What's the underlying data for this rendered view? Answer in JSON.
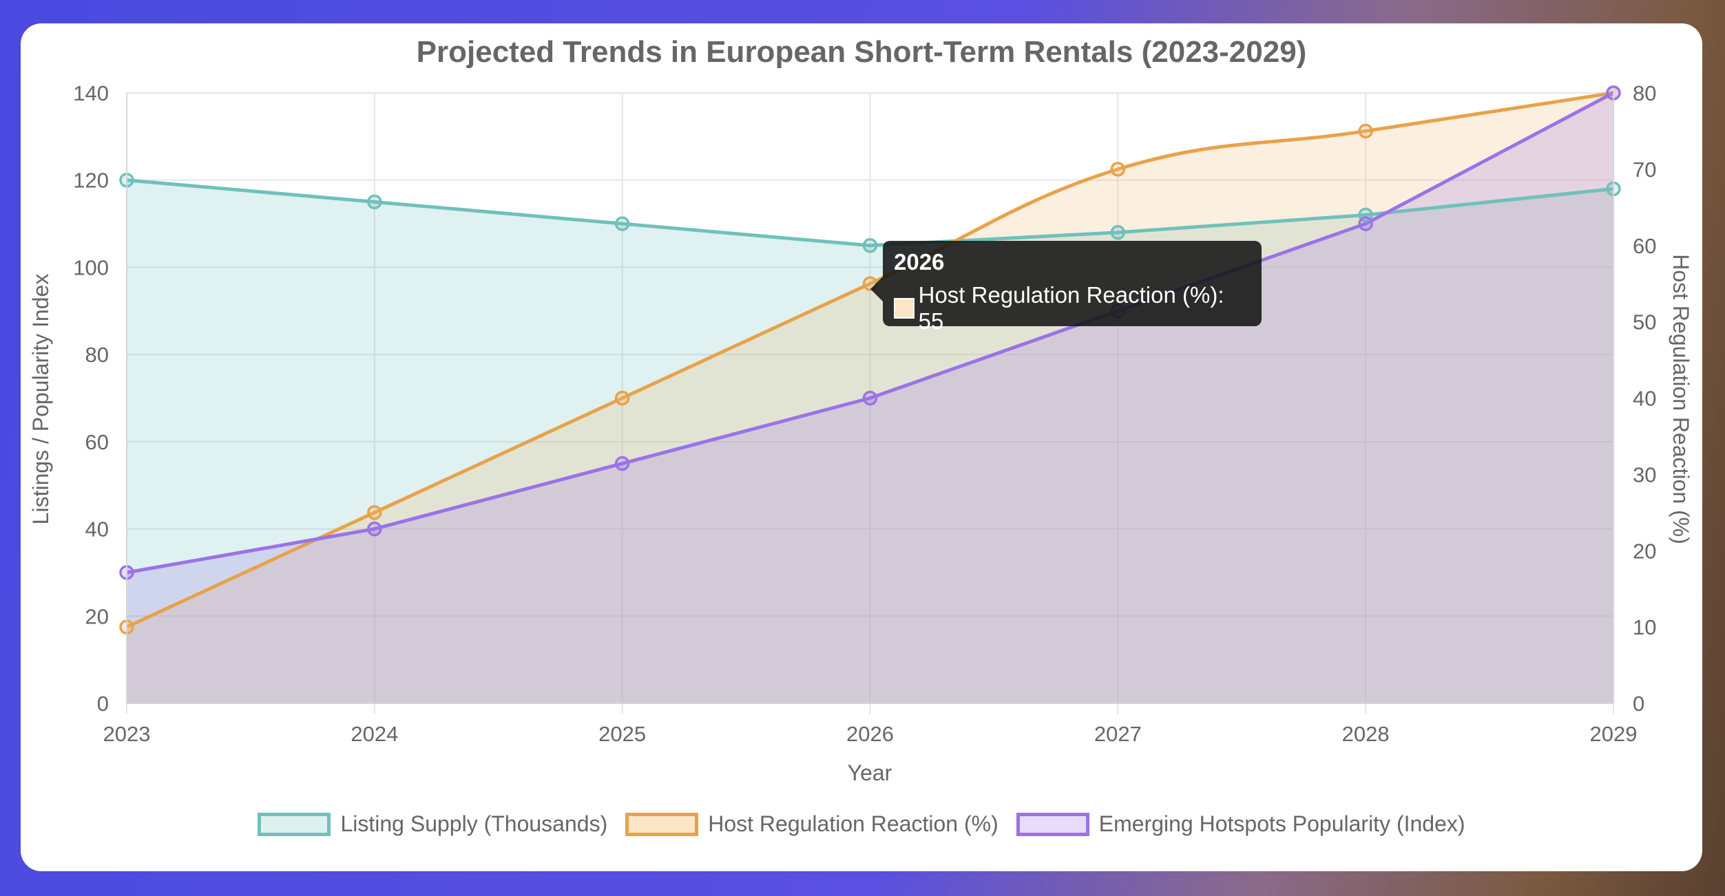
{
  "chart_data": {
    "type": "line",
    "title": "Projected Trends in European Short-Term Rentals (2023-2029)",
    "xlabel": "Year",
    "ylabel_left": "Listings / Popularity Index",
    "ylabel_right": "Host Regulation Reaction (%)",
    "categories": [
      "2023",
      "2024",
      "2025",
      "2026",
      "2027",
      "2028",
      "2029"
    ],
    "y_left": {
      "min": 0,
      "max": 140,
      "ticks": [
        0,
        20,
        40,
        60,
        80,
        100,
        120,
        140
      ]
    },
    "y_right": {
      "min": 0,
      "max": 80,
      "ticks": [
        0,
        10,
        20,
        30,
        40,
        50,
        60,
        70,
        80
      ]
    },
    "grid": true,
    "legend_position": "bottom",
    "series": [
      {
        "name": "Listing Supply (Thousands)",
        "axis": "left",
        "values": [
          120,
          115,
          110,
          105,
          108,
          112,
          118
        ],
        "color": "#6fc1bb",
        "fill": "rgba(111,193,187,0.22)",
        "smooth": false
      },
      {
        "name": "Host Regulation Reaction (%)",
        "axis": "right",
        "values": [
          10,
          25,
          40,
          55,
          70,
          75,
          80
        ],
        "color": "#e8a24a",
        "fill": "rgba(240,190,120,0.24)",
        "smooth": true
      },
      {
        "name": "Emerging Hotspots Popularity (Index)",
        "axis": "left",
        "values": [
          30,
          40,
          55,
          70,
          90,
          110,
          140
        ],
        "color": "#9b72e8",
        "fill": "rgba(155,114,232,0.22)",
        "smooth": false
      }
    ]
  },
  "tooltip": {
    "title": "2026",
    "label": "Host Regulation Reaction (%): 55",
    "swatch_color": "#fde5c8"
  }
}
